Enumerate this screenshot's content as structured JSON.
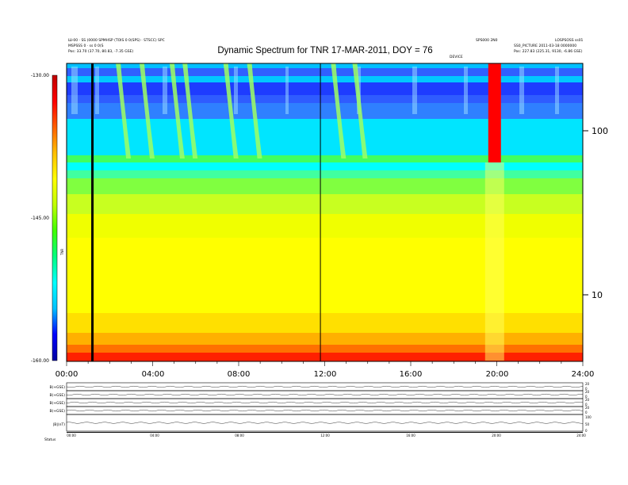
{
  "chart_data": {
    "type": "heatmap",
    "title": "Dynamic Spectrum for TNR 17-MAR-2011, DOY = 76",
    "x_tick_labels": [
      "00:00",
      "04:00",
      "08:00",
      "12:00",
      "16:00",
      "20:00",
      "24:00"
    ],
    "x_range_hours": [
      0,
      24
    ],
    "y_right_tick_labels": [
      "100",
      "10"
    ],
    "y_scale": "log",
    "colorbar": {
      "tick_labels": [
        "-130.00",
        "-145.00",
        "-160.00"
      ],
      "range": [
        -160,
        -130
      ],
      "label": "TNR",
      "colors": [
        "#0000a0",
        "#0000ff",
        "#00c0ff",
        "#00ffff",
        "#00ff80",
        "#40ff00",
        "#c0ff00",
        "#ffff00",
        "#ffc000",
        "#ff6000",
        "#ff0000",
        "#c00000"
      ]
    },
    "vertical_markers_hours": [
      1.2,
      11.8
    ],
    "features": [
      {
        "name": "type III bursts",
        "x_hours": [
          2.4,
          3.5,
          4.9,
          5.5,
          7.4,
          8.5,
          12.4,
          13.4
        ]
      },
      {
        "name": "intense burst",
        "x_hours": [
          19.9
        ]
      }
    ],
    "bottom_panels": {
      "labels": [
        "B(+GSE)",
        "B(+GSE)",
        "B(+GSE)",
        "B(+GSE)",
        "|B|(nT)"
      ],
      "x_tick_labels": [
        "00:00",
        "04:00",
        "08:00",
        "12:00",
        "16:00",
        "20:00",
        "24:00"
      ],
      "right_tick_labels": [
        "20",
        "0",
        "20",
        "0",
        "20",
        "0",
        "20",
        "0",
        "100",
        "50",
        "0"
      ]
    }
  },
  "header": {
    "top_left_1": "Ш-00 · SS (0000 SPMHSP (TOIS 0 0(SPS) · STSCC) SPC",
    "top_left_2": "MSPSSS 0 · ss 0 0(S",
    "top_left_3": "Pos:    33.70 (37.70, 80.83, -7.35 GSE)",
    "top_right_1": "SPS000 2N0",
    "top_right_2": "LOSPSOSS ss01",
    "top_right_3": "SS0_PICTURE 2011-03-18 0000000",
    "top_right_4": "Pos:    227.83 (225.31, 9130, -6.86 GSE)",
    "minor_mark": "DEVICE"
  },
  "footer": {
    "left": "Status"
  }
}
